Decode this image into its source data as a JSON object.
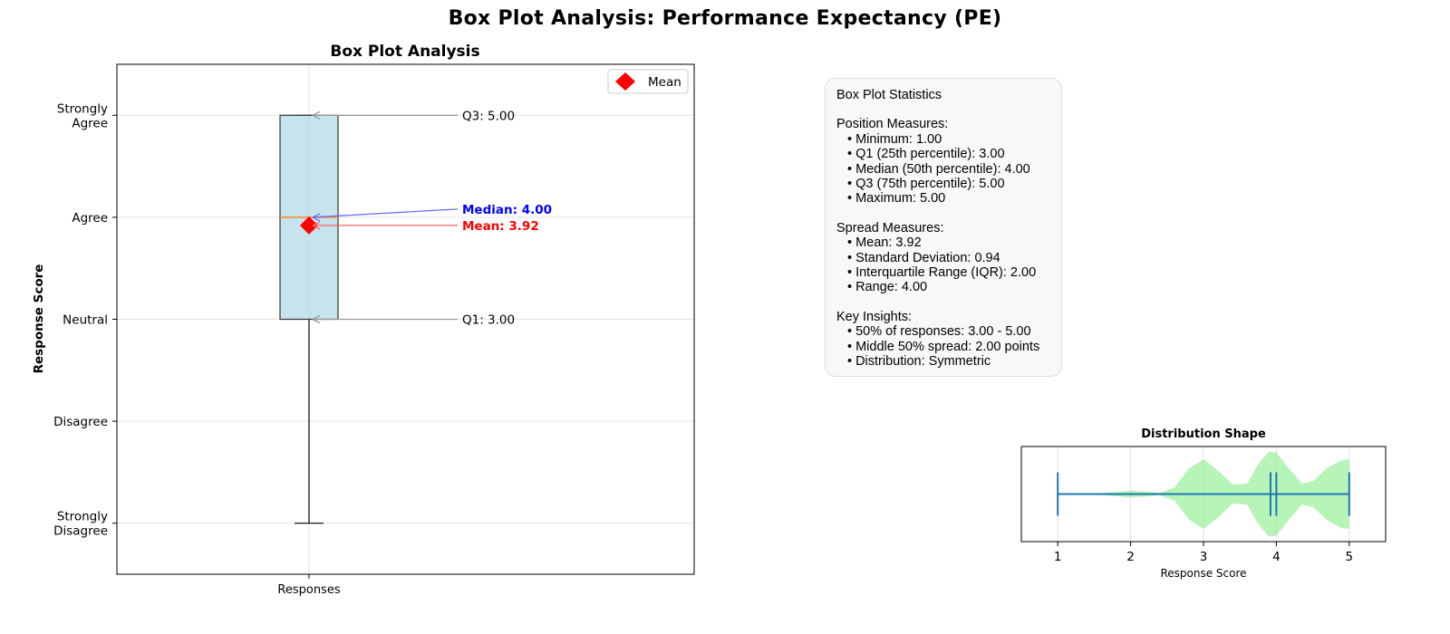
{
  "figure": {
    "title": "Box Plot Analysis: Performance Expectancy (PE)"
  },
  "chart_data": [
    {
      "type": "box",
      "title": "Box Plot Analysis",
      "ylabel": "Response Score",
      "xlabel": "",
      "categories": [
        "Responses"
      ],
      "ylim": [
        0.5,
        5.5
      ],
      "y_ticks": [
        1,
        2,
        3,
        4,
        5
      ],
      "y_tick_labels": [
        "Strongly\nDisagree",
        "Disagree",
        "Neutral",
        "Agree",
        "Strongly\nAgree"
      ],
      "grid": true,
      "legend": {
        "placement": "top-right",
        "entries": [
          "Mean"
        ]
      },
      "box": {
        "min": 1.0,
        "q1": 3.0,
        "median": 4.0,
        "q3": 5.0,
        "max": 5.0,
        "mean": 3.92
      },
      "annotations": [
        {
          "text": "Q3: 5.00",
          "y": 5.0,
          "text_y": 5.0,
          "color": "#000000",
          "weight": "normal",
          "arrow": "#999999"
        },
        {
          "text": "Median: 4.00",
          "y": 4.0,
          "text_y": 4.08,
          "color": "#0000ff",
          "weight": "bold",
          "arrow": "#6a6aff"
        },
        {
          "text": "Mean: 3.92",
          "y": 3.92,
          "text_y": 3.92,
          "color": "#ff0000",
          "weight": "bold",
          "arrow": "#ff6666"
        },
        {
          "text": "Q1: 3.00",
          "y": 3.0,
          "text_y": 3.0,
          "color": "#000000",
          "weight": "normal",
          "arrow": "#999999"
        }
      ],
      "colors": {
        "box_fill": "#add8e6",
        "median": "#ff7f0e",
        "mean_marker": "#ff0000"
      }
    },
    {
      "type": "violin",
      "title": "Distribution Shape",
      "xlabel": "Response Score",
      "xlim": [
        0.5,
        5.5
      ],
      "x_ticks": [
        1,
        2,
        3,
        4,
        5
      ],
      "grid": true,
      "density": [
        [
          1.0,
          0.02
        ],
        [
          1.1,
          0.02
        ],
        [
          1.3,
          0.01
        ],
        [
          1.6,
          0.02
        ],
        [
          1.8,
          0.05
        ],
        [
          2.0,
          0.08
        ],
        [
          2.2,
          0.06
        ],
        [
          2.4,
          0.03
        ],
        [
          2.6,
          0.15
        ],
        [
          2.8,
          0.6
        ],
        [
          3.0,
          0.82
        ],
        [
          3.2,
          0.55
        ],
        [
          3.4,
          0.22
        ],
        [
          3.6,
          0.25
        ],
        [
          3.75,
          0.7
        ],
        [
          3.9,
          1.0
        ],
        [
          4.0,
          0.97
        ],
        [
          4.15,
          0.65
        ],
        [
          4.35,
          0.25
        ],
        [
          4.5,
          0.3
        ],
        [
          4.7,
          0.62
        ],
        [
          4.9,
          0.8
        ],
        [
          5.0,
          0.82
        ]
      ],
      "extrema": {
        "min": 1.0,
        "max": 5.0
      },
      "mean": 3.92,
      "median": 4.0,
      "colors": {
        "body": "#90ee90",
        "lines": "#1f77b4"
      }
    }
  ],
  "stats": {
    "title": "Box Plot Statistics",
    "sections": [
      {
        "heading": "Position Measures:",
        "items": [
          "Minimum: 1.00",
          "Q1 (25th percentile): 3.00",
          "Median (50th percentile): 4.00",
          "Q3 (75th percentile): 5.00",
          "Maximum: 5.00"
        ]
      },
      {
        "heading": "Spread Measures:",
        "items": [
          "Mean: 3.92",
          "Standard Deviation: 0.94",
          "Interquartile Range (IQR): 2.00",
          "Range: 4.00"
        ]
      },
      {
        "heading": "Key Insights:",
        "items": [
          "50% of responses: 3.00 - 5.00",
          "Middle 50% spread: 2.00 points",
          "Distribution: Symmetric"
        ]
      }
    ]
  }
}
